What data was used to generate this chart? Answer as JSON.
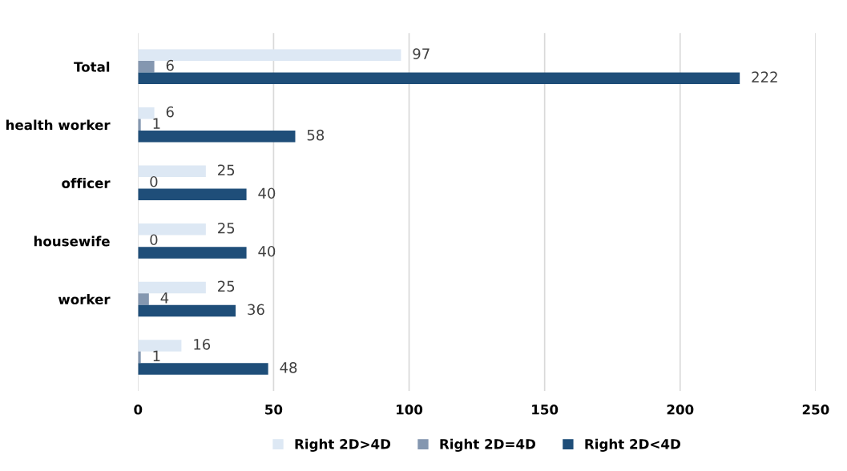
{
  "chart_data": {
    "type": "bar",
    "orientation": "horizontal",
    "categories": [
      "Total",
      "health worker",
      "officer",
      "housewife",
      "worker",
      null
    ],
    "series": [
      {
        "name": "Right 2D>4D",
        "color": "#dde8f4",
        "values": [
          97,
          6,
          25,
          25,
          25,
          16
        ]
      },
      {
        "name": "Right 2D=4D",
        "color": "#8497b0",
        "values": [
          6,
          1,
          0,
          0,
          4,
          1
        ]
      },
      {
        "name": "Right 2D<4D",
        "color": "#1f4e79",
        "values": [
          222,
          58,
          40,
          40,
          36,
          48
        ]
      }
    ],
    "xlim": [
      0,
      250
    ],
    "xticks": [
      0,
      50,
      100,
      150,
      200,
      250
    ],
    "grid": "x",
    "legend": "bottom",
    "data_labels": true
  }
}
